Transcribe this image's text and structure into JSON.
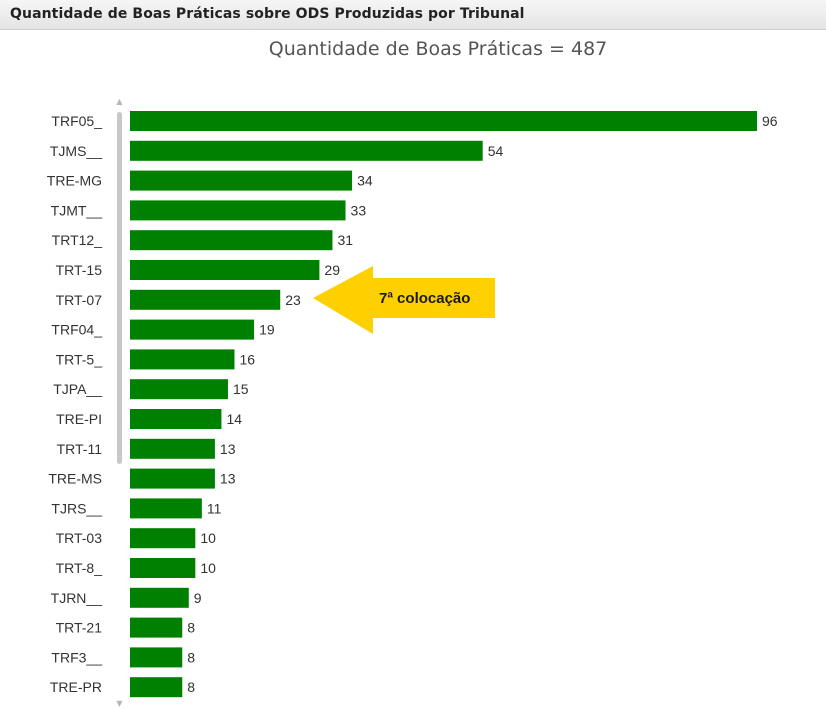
{
  "header": {
    "title": "Quantidade de Boas Práticas sobre ODS Produzidas por Tribunal"
  },
  "chart_data": {
    "type": "bar",
    "orientation": "horizontal",
    "title": "Quantidade de Boas Práticas = 487",
    "categories": [
      "TRF05_",
      "TJMS__",
      "TRE-MG",
      "TJMT__",
      "TRT12_",
      "TRT-15",
      "TRT-07",
      "TRF04_",
      "TRT-5_",
      "TJPA__",
      "TRE-PI",
      "TRT-11",
      "TRE-MS",
      "TJRS__",
      "TRT-03",
      "TRT-8_",
      "TJRN__",
      "TRT-21",
      "TRF3__",
      "TRE-PR"
    ],
    "values": [
      96,
      54,
      34,
      33,
      31,
      29,
      23,
      19,
      16,
      15,
      14,
      13,
      13,
      11,
      10,
      10,
      9,
      8,
      8,
      8
    ],
    "bar_color": "#008000",
    "xlim": [
      0,
      96
    ],
    "grid": false,
    "legend": "none"
  },
  "callout": {
    "text": "7ª colocação",
    "target_category": "TRT-07",
    "color": "#ffd000"
  }
}
